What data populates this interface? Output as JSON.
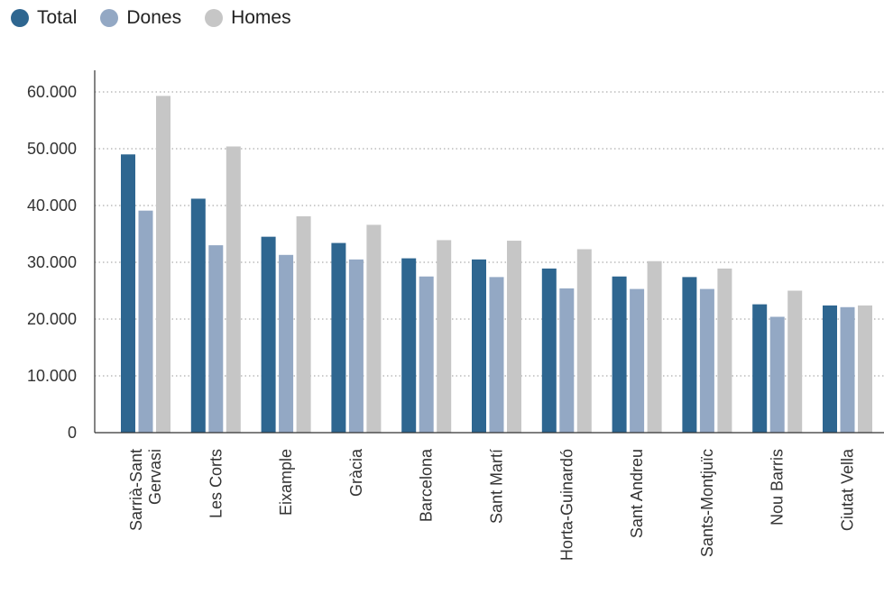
{
  "chart_data": {
    "type": "bar",
    "title": "",
    "xlabel": "",
    "ylabel": "",
    "ylim": [
      0,
      60000
    ],
    "yticks": [
      0,
      10000,
      20000,
      30000,
      40000,
      50000,
      60000
    ],
    "ytick_labels": [
      "0",
      "10.000",
      "20.000",
      "30.000",
      "40.000",
      "50.000",
      "60.000"
    ],
    "grid": "horizontal dotted",
    "legend_position": "top-left",
    "categories": [
      [
        "Sarrià-Sant",
        "Gervasi"
      ],
      [
        "Les Corts"
      ],
      [
        "Eixample"
      ],
      [
        "Gràcia"
      ],
      [
        "Barcelona"
      ],
      [
        "Sant Martí"
      ],
      [
        "Horta-Guinardó"
      ],
      [
        "Sant Andreu"
      ],
      [
        "Sants-Montjuïc"
      ],
      [
        "Nou Barris"
      ],
      [
        "Ciutat Vella"
      ]
    ],
    "series": [
      {
        "name": "Total",
        "color": "#2e6690",
        "values": [
          49000,
          41200,
          34500,
          33400,
          30700,
          30500,
          28900,
          27500,
          27400,
          22600,
          22400
        ]
      },
      {
        "name": "Dones",
        "color": "#93a8c4",
        "values": [
          39100,
          33000,
          31300,
          30500,
          27500,
          27400,
          25400,
          25300,
          25300,
          20400,
          22100
        ]
      },
      {
        "name": "Homes",
        "color": "#c6c6c6",
        "values": [
          59300,
          50400,
          38100,
          36600,
          33900,
          33800,
          32300,
          30200,
          28900,
          25000,
          22400
        ]
      }
    ]
  }
}
